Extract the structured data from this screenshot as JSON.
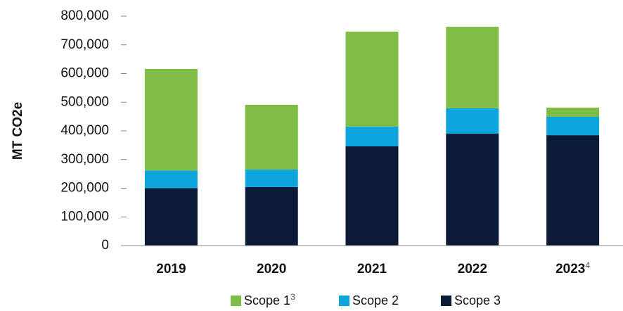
{
  "chart_data": {
    "type": "stacked_bar",
    "y_label": "MT CO2e",
    "categories": [
      "2019",
      "2020",
      "2021",
      "2022",
      "2023"
    ],
    "category_superscripts": [
      null,
      null,
      null,
      null,
      "4"
    ],
    "series": [
      {
        "name": "Scope 3",
        "color": "#0b1a36",
        "values": [
          200000,
          204000,
          346000,
          390000,
          385000
        ]
      },
      {
        "name": "Scope 2",
        "color": "#0ea5dd",
        "values": [
          62000,
          61000,
          69000,
          89000,
          64000
        ]
      },
      {
        "name": "Scope 1",
        "superscript": "3",
        "color": "#7fbd44",
        "values": [
          354000,
          226000,
          331000,
          284000,
          32000
        ]
      }
    ],
    "legend_order": [
      2,
      1,
      0
    ],
    "ylim": [
      0,
      800000
    ],
    "yticks": [
      0,
      {
        "value": 100000,
        "label": "100,000"
      },
      {
        "value": 200000,
        "label": "200,000"
      },
      {
        "value": 300000,
        "label": "300,000"
      },
      {
        "value": 400000,
        "label": "400,000"
      },
      {
        "value": 500000,
        "label": "500,000"
      },
      {
        "value": 600000,
        "label": "600,000"
      },
      {
        "value": 700000,
        "label": "700,000"
      },
      {
        "value": 800000,
        "label": "800,000"
      }
    ],
    "grid": false
  }
}
